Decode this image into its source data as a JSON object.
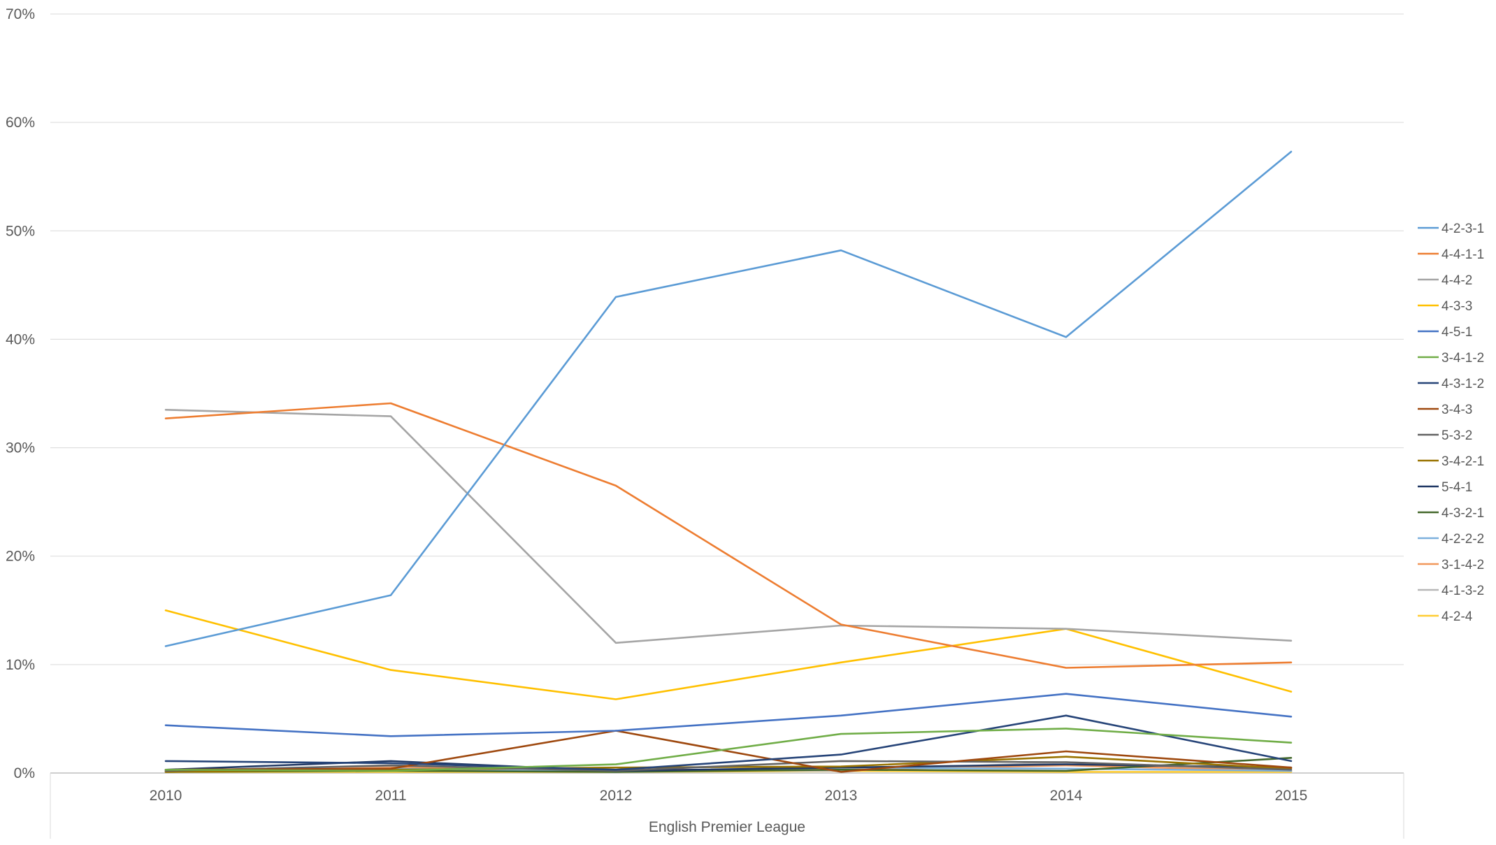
{
  "chart_data": {
    "type": "line",
    "xlabel": "English Premier League",
    "ylabel": "",
    "categories": [
      "2010",
      "2011",
      "2012",
      "2013",
      "2014",
      "2015"
    ],
    "ylim": [
      0,
      70
    ],
    "yticks": [
      "0%",
      "10%",
      "20%",
      "30%",
      "40%",
      "50%",
      "60%",
      "70%"
    ],
    "grid": true,
    "legend_position": "right",
    "series": [
      {
        "name": "4-2-3-1",
        "color": "#5b9bd5",
        "values": [
          11.7,
          16.4,
          43.9,
          48.2,
          40.2,
          57.3
        ]
      },
      {
        "name": "4-4-1-1",
        "color": "#ed7d31",
        "values": [
          32.7,
          34.1,
          26.5,
          13.7,
          9.7,
          10.2
        ]
      },
      {
        "name": "4-4-2",
        "color": "#a5a5a5",
        "values": [
          33.5,
          32.9,
          12.0,
          13.6,
          13.3,
          12.2
        ]
      },
      {
        "name": "4-3-3",
        "color": "#ffc000",
        "values": [
          15.0,
          9.5,
          6.8,
          10.2,
          13.3,
          7.5
        ]
      },
      {
        "name": "4-5-1",
        "color": "#4472c4",
        "values": [
          4.4,
          3.4,
          3.9,
          5.3,
          7.3,
          5.2
        ]
      },
      {
        "name": "3-4-1-2",
        "color": "#70ad47",
        "values": [
          0.3,
          0.2,
          0.8,
          3.6,
          4.1,
          2.8
        ]
      },
      {
        "name": "4-3-1-2",
        "color": "#264478",
        "values": [
          1.1,
          0.9,
          0.3,
          1.7,
          5.3,
          1.1
        ]
      },
      {
        "name": "3-4-3",
        "color": "#9e480e",
        "values": [
          0.3,
          0.4,
          3.9,
          0.1,
          2.0,
          0.5
        ]
      },
      {
        "name": "5-3-2",
        "color": "#636363",
        "values": [
          0.2,
          0.7,
          0.2,
          1.1,
          1.0,
          0.3
        ]
      },
      {
        "name": "3-4-2-1",
        "color": "#997300",
        "values": [
          0.1,
          0.3,
          0.5,
          0.6,
          1.5,
          0.4
        ]
      },
      {
        "name": "5-4-1",
        "color": "#203864",
        "values": [
          0.3,
          1.1,
          0.2,
          0.5,
          0.8,
          0.5
        ]
      },
      {
        "name": "4-3-2-1",
        "color": "#43682b",
        "values": [
          0.1,
          0.2,
          0.1,
          0.3,
          0.2,
          1.4
        ]
      },
      {
        "name": "4-2-2-2",
        "color": "#7cafdd",
        "values": [
          0.2,
          0.4,
          0.1,
          0.5,
          0.4,
          0.2
        ]
      },
      {
        "name": "3-1-4-2",
        "color": "#f1975a",
        "values": [
          0.1,
          0.5,
          0.3,
          0.3,
          0.7,
          0.2
        ]
      },
      {
        "name": "4-1-3-2",
        "color": "#b7b7b7",
        "values": [
          0.2,
          0.6,
          0.3,
          0.2,
          1.0,
          0.2
        ]
      },
      {
        "name": "4-2-4",
        "color": "#ffcd33",
        "values": [
          0.1,
          0.1,
          0.1,
          0.2,
          0.1,
          0.1
        ]
      }
    ]
  }
}
